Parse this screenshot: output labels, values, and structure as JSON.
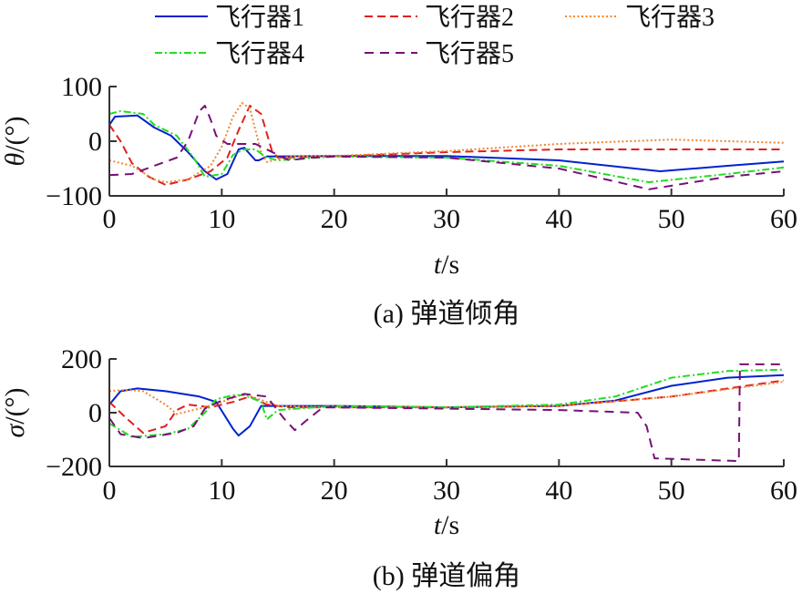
{
  "chart_data": [
    {
      "type": "line",
      "title": "",
      "caption": "(a) 弹道倾角",
      "xlabel_italic": "t",
      "xlabel_unit": "/s",
      "ylabel_italic": "θ",
      "ylabel_unit": "/(°)",
      "xlim": [
        0,
        60
      ],
      "ylim": [
        -100,
        100
      ],
      "xticks": [
        0,
        10,
        20,
        30,
        40,
        50,
        60
      ],
      "yticks": [
        -100,
        0,
        100
      ],
      "ytick_labels": [
        "−100",
        "0",
        "100"
      ],
      "grid": false,
      "series": [
        {
          "name": "飞行器1",
          "color": "#0022cc",
          "style": "solid",
          "points": [
            [
              0,
              30
            ],
            [
              0.5,
              45
            ],
            [
              2.5,
              47
            ],
            [
              4,
              25
            ],
            [
              5.5,
              10
            ],
            [
              7,
              -20
            ],
            [
              8.5,
              -55
            ],
            [
              9.5,
              -70
            ],
            [
              10.5,
              -60
            ],
            [
              11.5,
              -15
            ],
            [
              12,
              -12
            ],
            [
              13,
              -35
            ],
            [
              13.3,
              -35
            ],
            [
              14,
              -28
            ],
            [
              20,
              -27
            ],
            [
              30,
              -27
            ],
            [
              40,
              -35
            ],
            [
              49,
              -55
            ],
            [
              55,
              -45
            ],
            [
              60,
              -37
            ]
          ]
        },
        {
          "name": "飞行器2",
          "color": "#e02020",
          "style": "dashed",
          "points": [
            [
              0,
              30
            ],
            [
              1,
              0
            ],
            [
              2,
              -40
            ],
            [
              3.5,
              -65
            ],
            [
              5,
              -80
            ],
            [
              7,
              -70
            ],
            [
              9,
              -55
            ],
            [
              10.5,
              -30
            ],
            [
              11.5,
              20
            ],
            [
              12.5,
              65
            ],
            [
              13.5,
              50
            ],
            [
              14.5,
              -20
            ],
            [
              15,
              -30
            ],
            [
              20,
              -28
            ],
            [
              30,
              -20
            ],
            [
              40,
              -15
            ],
            [
              50,
              -15
            ],
            [
              60,
              -15
            ]
          ]
        },
        {
          "name": "飞行器3",
          "color": "#ee8833",
          "style": "dotted",
          "points": [
            [
              0,
              -35
            ],
            [
              2,
              -45
            ],
            [
              4,
              -70
            ],
            [
              5,
              -75
            ],
            [
              7,
              -70
            ],
            [
              9,
              -45
            ],
            [
              10,
              -10
            ],
            [
              11,
              45
            ],
            [
              11.8,
              70
            ],
            [
              12.5,
              60
            ],
            [
              13.5,
              -20
            ],
            [
              14,
              -38
            ],
            [
              16,
              -28
            ],
            [
              20,
              -27
            ],
            [
              30,
              -18
            ],
            [
              40,
              -5
            ],
            [
              50,
              3
            ],
            [
              60,
              -3
            ]
          ]
        },
        {
          "name": "飞行器4",
          "color": "#22dd22",
          "style": "dashdot",
          "points": [
            [
              0,
              50
            ],
            [
              1,
              55
            ],
            [
              3,
              50
            ],
            [
              4,
              30
            ],
            [
              6,
              10
            ],
            [
              7.5,
              -30
            ],
            [
              8.5,
              -65
            ],
            [
              10,
              -60
            ],
            [
              11,
              -25
            ],
            [
              12,
              -15
            ],
            [
              13,
              -15
            ],
            [
              14,
              -30
            ],
            [
              15,
              -35
            ],
            [
              20,
              -28
            ],
            [
              30,
              -30
            ],
            [
              40,
              -45
            ],
            [
              48,
              -75
            ],
            [
              55,
              -60
            ],
            [
              60,
              -48
            ]
          ]
        },
        {
          "name": "飞行器5",
          "color": "#771177",
          "style": "longdash",
          "points": [
            [
              0,
              -62
            ],
            [
              2,
              -60
            ],
            [
              4,
              -45
            ],
            [
              6,
              -30
            ],
            [
              7,
              0
            ],
            [
              8,
              55
            ],
            [
              8.5,
              65
            ],
            [
              9,
              40
            ],
            [
              9.5,
              10
            ],
            [
              10.5,
              -5
            ],
            [
              13,
              -5
            ],
            [
              15,
              -25
            ],
            [
              16,
              -35
            ],
            [
              18,
              -30
            ],
            [
              20,
              -28
            ],
            [
              30,
              -30
            ],
            [
              40,
              -50
            ],
            [
              48,
              -88
            ],
            [
              55,
              -65
            ],
            [
              60,
              -55
            ]
          ]
        }
      ]
    },
    {
      "type": "line",
      "title": "",
      "caption": "(b) 弹道偏角",
      "xlabel_italic": "t",
      "xlabel_unit": "/s",
      "ylabel_italic": "σ",
      "ylabel_unit": "/(°)",
      "xlim": [
        0,
        60
      ],
      "ylim": [
        -200,
        200
      ],
      "xticks": [
        0,
        10,
        20,
        30,
        40,
        50,
        60
      ],
      "yticks": [
        -200,
        0,
        200
      ],
      "ytick_labels": [
        "−200",
        "0",
        "200"
      ],
      "grid": false,
      "series": [
        {
          "name": "飞行器1",
          "color": "#0022cc",
          "style": "solid",
          "points": [
            [
              0,
              30
            ],
            [
              1,
              80
            ],
            [
              2.5,
              90
            ],
            [
              5,
              80
            ],
            [
              8,
              60
            ],
            [
              9.5,
              40
            ],
            [
              11,
              -60
            ],
            [
              11.5,
              -85
            ],
            [
              12.5,
              -50
            ],
            [
              13.5,
              25
            ],
            [
              14,
              25
            ],
            [
              20,
              25
            ],
            [
              30,
              20
            ],
            [
              40,
              25
            ],
            [
              45,
              45
            ],
            [
              50,
              100
            ],
            [
              55,
              130
            ],
            [
              60,
              140
            ]
          ]
        },
        {
          "name": "飞行器2",
          "color": "#e02020",
          "style": "dashed",
          "points": [
            [
              0,
              40
            ],
            [
              1.5,
              -20
            ],
            [
              3,
              -75
            ],
            [
              5,
              -50
            ],
            [
              6,
              10
            ],
            [
              7,
              30
            ],
            [
              9,
              20
            ],
            [
              11,
              40
            ],
            [
              12.5,
              60
            ],
            [
              14,
              30
            ],
            [
              16,
              20
            ],
            [
              20,
              20
            ],
            [
              30,
              20
            ],
            [
              40,
              25
            ],
            [
              50,
              60
            ],
            [
              60,
              120
            ]
          ]
        },
        {
          "name": "飞行器3",
          "color": "#ee8833",
          "style": "dotted",
          "points": [
            [
              0,
              80
            ],
            [
              1.5,
              85
            ],
            [
              3,
              80
            ],
            [
              5,
              30
            ],
            [
              6,
              -5
            ],
            [
              8,
              15
            ],
            [
              10,
              40
            ],
            [
              12,
              70
            ],
            [
              13,
              55
            ],
            [
              15,
              25
            ],
            [
              20,
              20
            ],
            [
              30,
              20
            ],
            [
              40,
              25
            ],
            [
              50,
              60
            ],
            [
              60,
              115
            ]
          ]
        },
        {
          "name": "飞行器4",
          "color": "#22dd22",
          "style": "dashdot",
          "points": [
            [
              0,
              -40
            ],
            [
              2,
              -90
            ],
            [
              5,
              -80
            ],
            [
              7,
              -60
            ],
            [
              8.5,
              0
            ],
            [
              9.5,
              50
            ],
            [
              11,
              65
            ],
            [
              12,
              65
            ],
            [
              13.5,
              40
            ],
            [
              14,
              -25
            ],
            [
              15,
              10
            ],
            [
              20,
              25
            ],
            [
              30,
              20
            ],
            [
              40,
              30
            ],
            [
              45,
              60
            ],
            [
              50,
              130
            ],
            [
              55,
              155
            ],
            [
              60,
              160
            ]
          ]
        },
        {
          "name": "飞行器5",
          "color": "#771177",
          "style": "longdash",
          "points": [
            [
              0,
              -20
            ],
            [
              1,
              -80
            ],
            [
              3,
              -95
            ],
            [
              6,
              -75
            ],
            [
              7.5,
              -50
            ],
            [
              8.5,
              15
            ],
            [
              10,
              45
            ],
            [
              12,
              70
            ],
            [
              14,
              60
            ],
            [
              15.5,
              -20
            ],
            [
              16.5,
              -65
            ],
            [
              17.5,
              -30
            ],
            [
              19,
              20
            ],
            [
              30,
              15
            ],
            [
              40,
              10
            ],
            [
              47,
              0
            ],
            [
              47.8,
              -50
            ],
            [
              48.5,
              -170
            ],
            [
              56,
              -180
            ],
            [
              56.1,
              180
            ],
            [
              60,
              180
            ]
          ]
        }
      ]
    }
  ],
  "legend": {
    "placement": "top",
    "entries": [
      "飞行器1",
      "飞行器2",
      "飞行器3",
      "飞行器4",
      "飞行器5"
    ]
  }
}
